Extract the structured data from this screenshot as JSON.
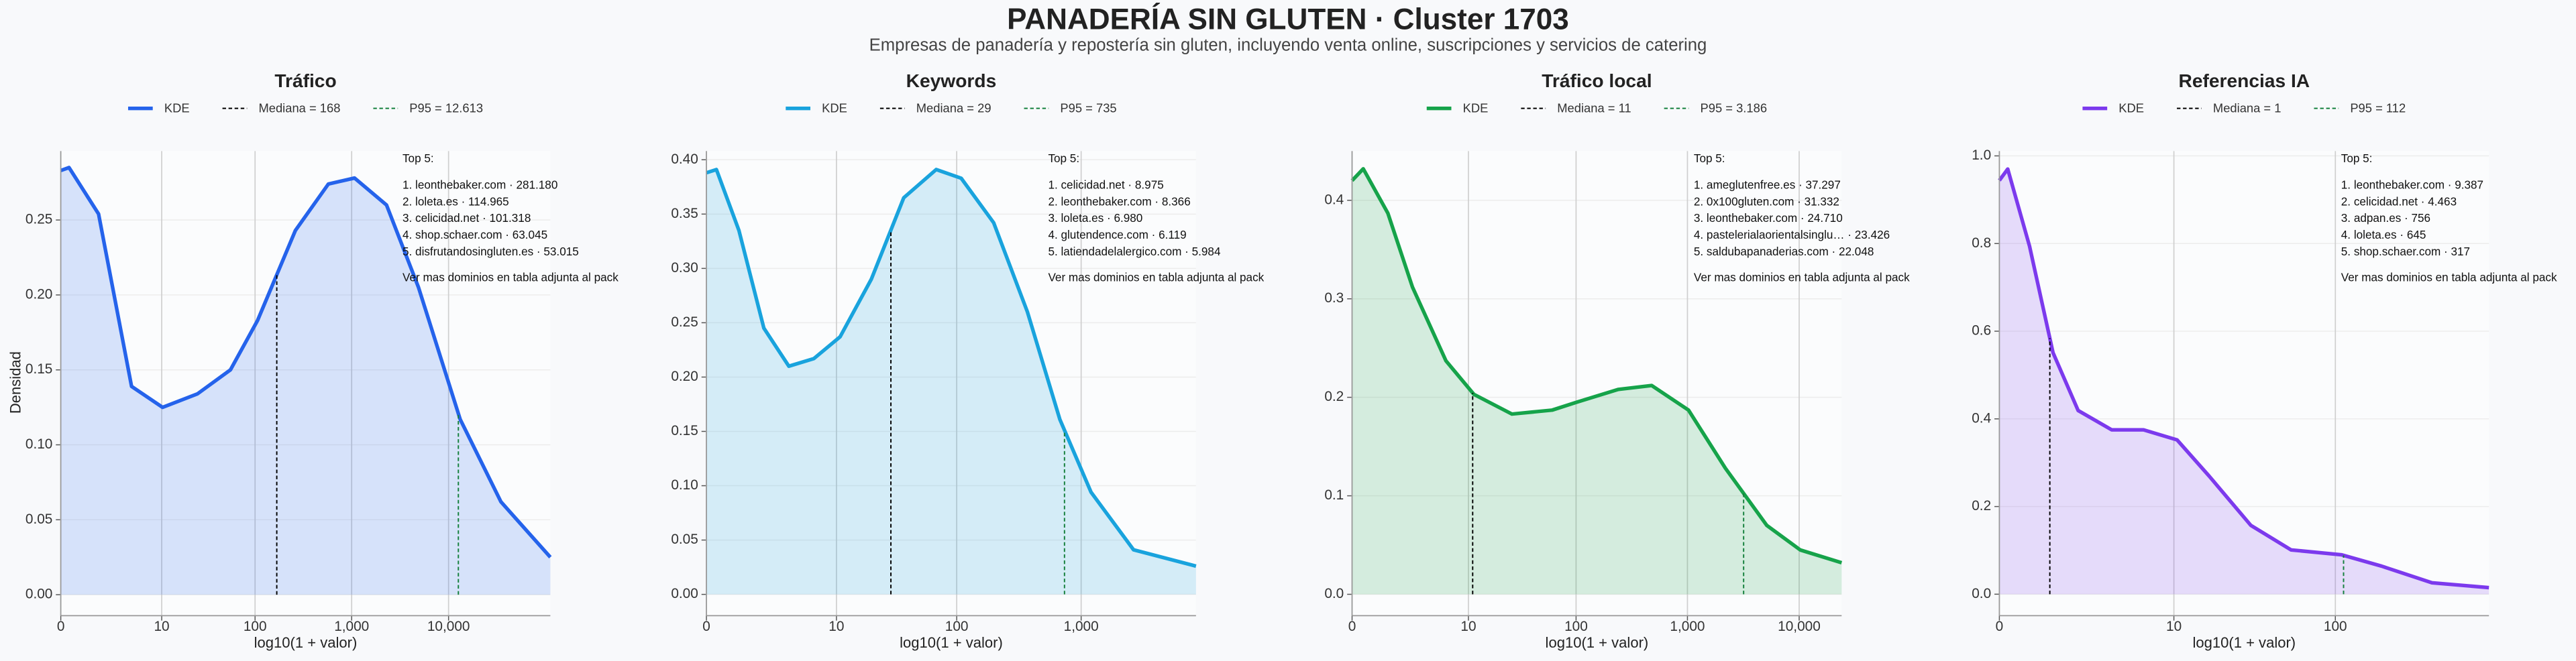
{
  "header": {
    "title": "PANADERÍA SIN GLUTEN · Cluster 1703",
    "subtitle": "Empresas de panadería y repostería sin gluten, incluyendo venta online, suscripciones y servicios de catering"
  },
  "chart_data": [
    {
      "type": "line",
      "title": "Tráfico",
      "x_label": "log10(1 + valor)",
      "y_label": "Densidad",
      "grid": true,
      "xlim": [
        0,
        5.05
      ],
      "ylim": [
        -0.014,
        0.296
      ],
      "xticks": [
        0,
        {
          "value": 1.041,
          "label": "10"
        },
        {
          "value": 2.004,
          "label": "100"
        },
        {
          "value": 3.0004,
          "label": "1,000"
        },
        {
          "value": 4.0,
          "label": "10,000"
        }
      ],
      "yticks": [
        {
          "value": 0,
          "label": "0.00"
        },
        0.05,
        {
          "value": 0.1,
          "label": "0.10"
        },
        0.15,
        {
          "value": 0.2,
          "label": "0.20"
        },
        0.25
      ],
      "x": [
        0,
        0.085,
        0.39,
        0.73,
        1.05,
        1.41,
        1.75,
        2.03,
        2.42,
        2.76,
        3.03,
        3.36,
        3.69,
        4.12,
        4.54,
        5.05
      ],
      "series": [
        {
          "name": "KDE",
          "color": "#2563eb",
          "values": [
            0.283,
            0.285,
            0.254,
            0.139,
            0.125,
            0.134,
            0.15,
            0.183,
            0.243,
            0.274,
            0.278,
            0.26,
            0.205,
            0.117,
            0.062,
            0.025
          ]
        }
      ],
      "reference_lines": [
        {
          "name": "Mediana = 168",
          "x": 2.228,
          "color": "#000000"
        },
        {
          "name": "P95 = 12.613",
          "x": 4.101,
          "color": "#15803d"
        }
      ],
      "annotation": {
        "heading": "Top 5:",
        "items": [
          "1. leonthebaker.com · 281.180",
          "2. loleta.es · 114.965",
          "3. celicidad.net · 101.318",
          "4. shop.schaer.com · 63.045",
          "5. disfrutandosingluten.es · 53.015"
        ],
        "footer": "Ver mas dominios en tabla adjunta al pack"
      }
    },
    {
      "type": "line",
      "title": "Keywords",
      "x_label": "log10(1 + valor)",
      "grid": true,
      "xlim": [
        0,
        3.92
      ],
      "ylim": [
        -0.0196,
        0.408
      ],
      "xticks": [
        0,
        {
          "value": 1.041,
          "label": "10"
        },
        {
          "value": 2.004,
          "label": "100"
        },
        {
          "value": 3.0004,
          "label": "1,000"
        }
      ],
      "yticks": [
        {
          "value": 0,
          "label": "0.00"
        },
        0.05,
        {
          "value": 0.1,
          "label": "0.10"
        },
        0.15,
        {
          "value": 0.2,
          "label": "0.20"
        },
        0.25,
        {
          "value": 0.3,
          "label": "0.30"
        },
        0.35,
        {
          "value": 0.4,
          "label": "0.40"
        }
      ],
      "x": [
        0,
        0.08,
        0.26,
        0.46,
        0.66,
        0.86,
        1.07,
        1.32,
        1.58,
        1.84,
        2.04,
        2.3,
        2.57,
        2.83,
        3.08,
        3.42,
        3.92
      ],
      "series": [
        {
          "name": "KDE",
          "color": "#19a3dd",
          "values": [
            0.388,
            0.391,
            0.335,
            0.245,
            0.21,
            0.217,
            0.237,
            0.29,
            0.365,
            0.391,
            0.383,
            0.342,
            0.26,
            0.161,
            0.094,
            0.041,
            0.026
          ]
        }
      ],
      "reference_lines": [
        {
          "name": "Mediana = 29",
          "x": 1.477,
          "color": "#000000"
        },
        {
          "name": "P95 = 735",
          "x": 2.867,
          "color": "#15803d"
        }
      ],
      "annotation": {
        "heading": "Top 5:",
        "items": [
          "1. celicidad.net · 8.975",
          "2. leonthebaker.com · 8.366",
          "3. loleta.es · 6.980",
          "4. glutendence.com · 6.119",
          "5. latiendadelalergico.com · 5.984"
        ],
        "footer": "Ver mas dominios en tabla adjunta al pack"
      }
    },
    {
      "type": "line",
      "title": "Tráfico local",
      "x_label": "log10(1 + valor)",
      "grid": true,
      "xlim": [
        0,
        4.38
      ],
      "ylim": [
        -0.0217,
        0.45
      ],
      "xticks": [
        0,
        {
          "value": 1.041,
          "label": "10"
        },
        {
          "value": 2.004,
          "label": "100"
        },
        {
          "value": 3.0004,
          "label": "1,000"
        },
        {
          "value": 4.0,
          "label": "10,000"
        }
      ],
      "yticks": [
        {
          "value": 0,
          "label": "0.0"
        },
        0.1,
        0.2,
        0.3,
        0.4
      ],
      "x": [
        0,
        0.1,
        0.32,
        0.54,
        0.84,
        1.09,
        1.43,
        1.79,
        2.01,
        2.38,
        2.68,
        3.01,
        3.34,
        3.71,
        4.01,
        4.38
      ],
      "series": [
        {
          "name": "KDE",
          "color": "#16a34a",
          "values": [
            0.42,
            0.432,
            0.387,
            0.312,
            0.237,
            0.203,
            0.183,
            0.187,
            0.195,
            0.208,
            0.212,
            0.187,
            0.128,
            0.07,
            0.045,
            0.032
          ]
        }
      ],
      "reference_lines": [
        {
          "name": "Mediana = 11",
          "x": 1.079,
          "color": "#000000"
        },
        {
          "name": "P95 = 3.186",
          "x": 3.503,
          "color": "#15803d"
        }
      ],
      "annotation": {
        "heading": "Top 5:",
        "items": [
          "1. ameglutenfree.es · 37.297",
          "2. 0x100gluten.com · 31.332",
          "3. leonthebaker.com · 24.710",
          "4. pastelerialaorientalsinglu… · 23.426",
          "5. saldubapanaderias.com · 22.048"
        ],
        "footer": "Ver mas dominios en tabla adjunta al pack"
      }
    },
    {
      "type": "line",
      "title": "Referencias IA",
      "x_label": "log10(1 + valor)",
      "grid": true,
      "xlim": [
        0,
        2.92
      ],
      "ylim": [
        -0.049,
        1.011
      ],
      "xticks": [
        0,
        {
          "value": 1.041,
          "label": "10"
        },
        {
          "value": 2.004,
          "label": "100"
        }
      ],
      "yticks": [
        {
          "value": 0,
          "label": "0.0"
        },
        0.2,
        0.4,
        0.6,
        0.8,
        {
          "value": 1,
          "label": "1.0"
        }
      ],
      "x": [
        0,
        0.05,
        0.18,
        0.32,
        0.47,
        0.67,
        0.86,
        1.06,
        1.25,
        1.5,
        1.74,
        2.04,
        2.28,
        2.58,
        2.92
      ],
      "series": [
        {
          "name": "KDE",
          "color": "#7c3aed",
          "values": [
            0.944,
            0.97,
            0.794,
            0.551,
            0.419,
            0.375,
            0.375,
            0.352,
            0.27,
            0.157,
            0.101,
            0.09,
            0.064,
            0.026,
            0.015
          ]
        }
      ],
      "reference_lines": [
        {
          "name": "Mediana = 1",
          "x": 0.301,
          "color": "#000000"
        },
        {
          "name": "P95 = 112",
          "x": 2.053,
          "color": "#15803d"
        }
      ],
      "annotation": {
        "heading": "Top 5:",
        "items": [
          "1. leonthebaker.com · 9.387",
          "2. celicidad.net · 4.463",
          "3. adpan.es · 756",
          "4. loleta.es · 645",
          "5. shop.schaer.com · 317"
        ],
        "footer": "Ver mas dominios en tabla adjunta al pack"
      }
    }
  ]
}
